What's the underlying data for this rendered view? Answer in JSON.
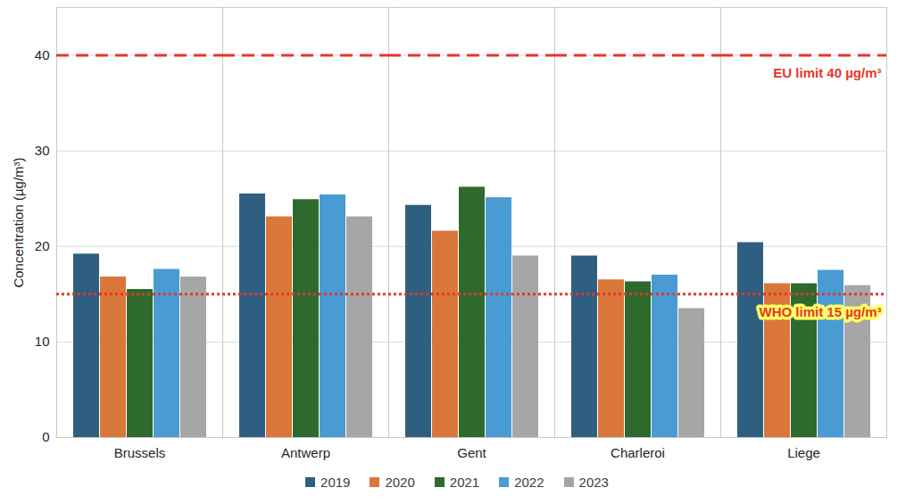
{
  "chart_data": {
    "type": "bar",
    "y_label": "Concentration (µg/m³)",
    "categories": [
      "Brussels",
      "Antwerp",
      "Gent",
      "Charleroi",
      "Liege"
    ],
    "series": [
      {
        "name": "2019",
        "color": "#2f5f80",
        "values": [
          19.2,
          25.5,
          24.3,
          19.0,
          20.4
        ]
      },
      {
        "name": "2020",
        "color": "#d9773a",
        "values": [
          16.8,
          23.1,
          21.6,
          16.5,
          16.1
        ]
      },
      {
        "name": "2021",
        "color": "#2e6a2e",
        "values": [
          15.5,
          24.9,
          26.2,
          16.3,
          16.1
        ]
      },
      {
        "name": "2022",
        "color": "#4a9bd4",
        "values": [
          17.6,
          25.4,
          25.1,
          17.0,
          17.5
        ]
      },
      {
        "name": "2023",
        "color": "#a6a6a6",
        "values": [
          16.8,
          23.1,
          19.0,
          13.5,
          15.9
        ]
      }
    ],
    "reference_lines": [
      {
        "value": 40,
        "label": "EU limit 40 µg/m³",
        "color": "#e3382b",
        "line_style": "dashed"
      },
      {
        "value": 15,
        "label": "WHO limit 15 µg/m³",
        "color": "#e3382b",
        "line_style": "dotted"
      }
    ],
    "ylim": [
      0,
      45
    ],
    "yticks": [
      0,
      10,
      20,
      30,
      40
    ],
    "grid": true,
    "legend": "bottom"
  }
}
